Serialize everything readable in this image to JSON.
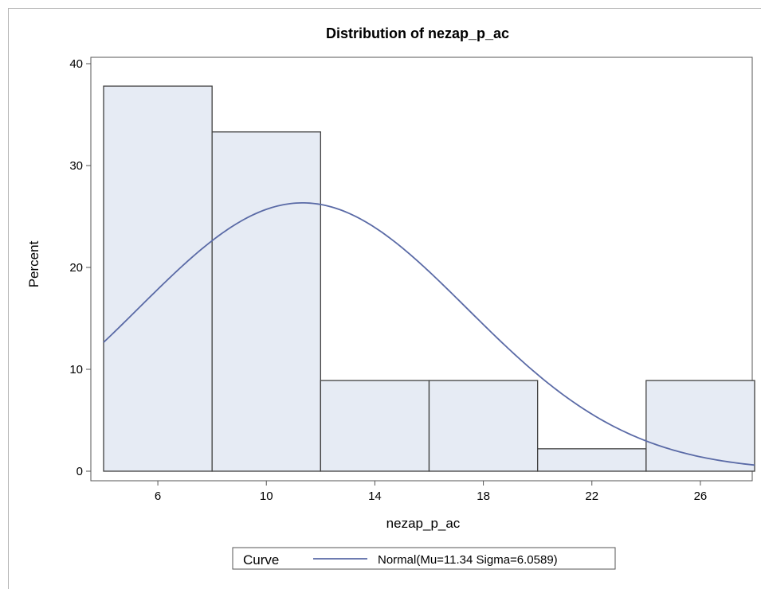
{
  "chart_data": {
    "type": "bar",
    "title": "Distribution of nezap_p_ac",
    "xlabel": "nezap_p_ac",
    "ylabel": "Percent",
    "xlim": [
      4,
      28
    ],
    "ylim": [
      0,
      40
    ],
    "bins": [
      {
        "x0": 4,
        "x1": 8,
        "value": 37.8
      },
      {
        "x0": 8,
        "x1": 12,
        "value": 33.3
      },
      {
        "x0": 12,
        "x1": 16,
        "value": 8.9
      },
      {
        "x0": 16,
        "x1": 20,
        "value": 8.9
      },
      {
        "x0": 20,
        "x1": 24,
        "value": 2.2
      },
      {
        "x0": 24,
        "x1": 28,
        "value": 8.9
      }
    ],
    "x_ticks": [
      6,
      10,
      14,
      18,
      22,
      26
    ],
    "y_ticks": [
      0,
      10,
      20,
      30,
      40
    ],
    "curve": {
      "name": "Normal(Mu=11.34 Sigma=6.0589)",
      "mu": 11.34,
      "sigma": 6.0589,
      "bin_width": 4
    },
    "legend": {
      "heading": "Curve",
      "position": "bottom"
    },
    "grid": false,
    "colors": {
      "bar_fill": "#e6ebf4",
      "bar_stroke": "#404040",
      "curve": "#5a6aa6",
      "axis": "#555555"
    }
  }
}
